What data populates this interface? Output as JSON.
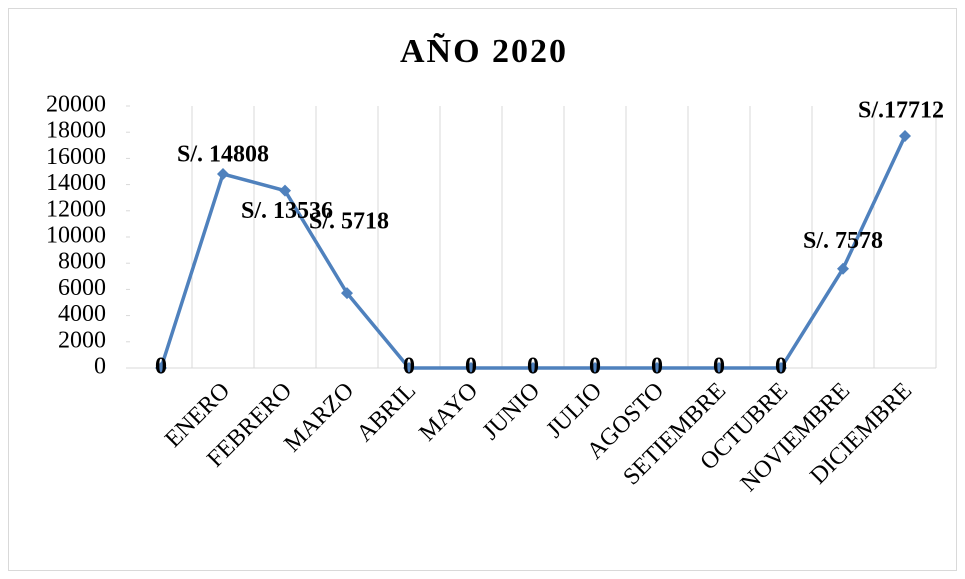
{
  "chart_data": {
    "type": "line",
    "title": "AÑO 2020",
    "categories": [
      null,
      "ENERO",
      "FEBRERO",
      "MARZO",
      "ABRIL",
      "MAYO",
      "JUNIO",
      "JULIO",
      "AGOSTO",
      "SETIEMBRE",
      "OCTUBRE",
      "NOVIEMBRE",
      "DICIEMBRE"
    ],
    "series": [
      {
        "color": "#4f81bd",
        "values": [
          0,
          14808,
          13536,
          5718,
          0,
          0,
          0,
          0,
          0,
          0,
          0,
          7578,
          17712
        ],
        "value_labels": [
          "0",
          "S/. 14808",
          "S/. 13536",
          "S/. 5718",
          "0",
          "0",
          "0",
          "0",
          "0",
          "0",
          "0",
          "S/. 7578",
          "S/.17712"
        ]
      }
    ],
    "ylim": [
      0,
      20000
    ],
    "yticks": [
      0,
      2000,
      4000,
      6000,
      8000,
      10000,
      12000,
      14000,
      16000,
      18000,
      20000
    ],
    "grid": true
  }
}
